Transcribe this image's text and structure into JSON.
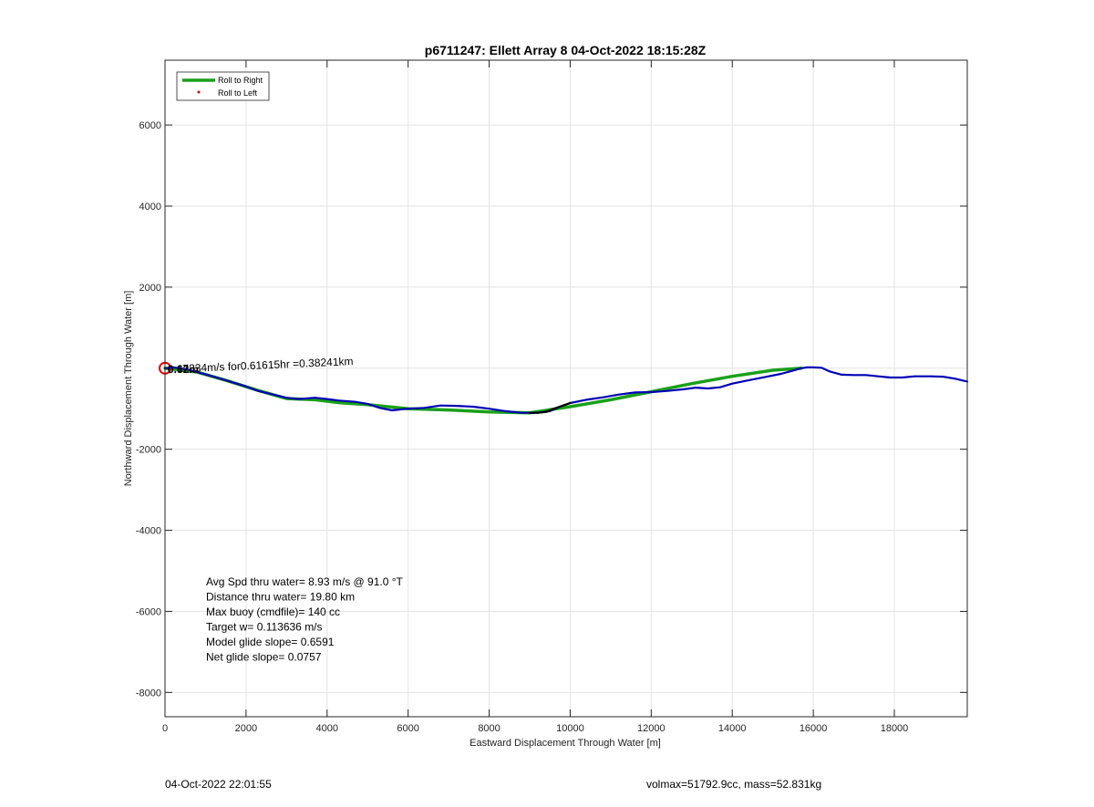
{
  "chart_data": {
    "type": "line",
    "title": "p6711247: Ellett Array 8 04-Oct-2022 18:15:28Z",
    "xlabel": "Eastward Displacement Through Water [m]",
    "ylabel": "Northward Displacement Through Water [m]",
    "xlim": [
      0,
      19800
    ],
    "ylim": [
      -8600,
      7600
    ],
    "xticks": [
      0,
      2000,
      4000,
      6000,
      8000,
      10000,
      12000,
      14000,
      16000,
      18000
    ],
    "yticks": [
      -8000,
      -6000,
      -4000,
      -2000,
      2000,
      4000,
      6000
    ],
    "grid": true,
    "legend": {
      "placement": "top-left",
      "entries": [
        "Roll to Right",
        "Roll to Left"
      ]
    },
    "series": [
      {
        "name": "Roll to Right",
        "color": "#1aa01a",
        "style": "thick-line",
        "x": [
          0,
          800,
          1500,
          2300,
          3000,
          3700,
          4300,
          5000,
          6000,
          7000,
          8000,
          9000,
          10000,
          11000,
          12000,
          13000,
          14000,
          15000,
          15700
        ],
        "y": [
          0,
          -100,
          -300,
          -550,
          -750,
          -780,
          -850,
          -900,
          -1000,
          -1030,
          -1080,
          -1100,
          -950,
          -780,
          -580,
          -380,
          -200,
          -50,
          0
        ]
      },
      {
        "name": "Roll to Left",
        "color": "#e00000",
        "style": "marker",
        "x": [
          0
        ],
        "y": [
          0
        ]
      },
      {
        "color": "#0000b4",
        "style": "line",
        "x": [
          0,
          200,
          500,
          800,
          1100,
          1500,
          1900,
          2300,
          2700,
          3000,
          3300,
          3700,
          4000,
          4300,
          4700,
          5000,
          5300,
          5600,
          6000,
          6400,
          6800,
          7200,
          7600,
          8000,
          8400,
          8800,
          9200,
          9500,
          9700,
          10000,
          10400,
          10800,
          11200,
          11600,
          12000,
          12400,
          12800,
          13100,
          13400,
          13700,
          14000,
          14400,
          14800,
          15200,
          15500,
          15700,
          15850,
          16000,
          16200,
          16400,
          16700,
          17000,
          17300,
          17600,
          17900,
          18200,
          18500,
          18900,
          19200,
          19500,
          19800
        ],
        "y": [
          0,
          20,
          -20,
          -100,
          -180,
          -300,
          -420,
          -560,
          -660,
          -730,
          -760,
          -730,
          -760,
          -800,
          -830,
          -880,
          -980,
          -1040,
          -1000,
          -980,
          -920,
          -930,
          -950,
          -1000,
          -1060,
          -1100,
          -1100,
          -1060,
          -970,
          -860,
          -780,
          -720,
          -650,
          -600,
          -590,
          -560,
          -520,
          -480,
          -500,
          -470,
          -380,
          -300,
          -220,
          -140,
          -60,
          0,
          20,
          20,
          10,
          -80,
          -160,
          -170,
          -170,
          -200,
          -230,
          -230,
          -200,
          -200,
          -210,
          -260,
          -330
        ]
      },
      {
        "color": "#000000",
        "style": "line",
        "x": [
          9000,
          9200,
          9400,
          9600,
          9800,
          10000
        ],
        "y": [
          -1100,
          -1100,
          -1080,
          -1000,
          -930,
          -860
        ]
      }
    ],
    "annotations": {
      "rotated_label": "0.17334m/s for0.61615hr =0.38241km",
      "start_label": "0.62m",
      "stats": [
        "Avg Spd thru water=  8.93 m/s @  91.0 °T",
        "Distance thru water= 19.80 km",
        "Max buoy (cmdfile)= 140 cc",
        "Target w= 0.113636 m/s",
        "Model glide slope= 0.6591",
        "Net glide slope= 0.0757"
      ]
    }
  },
  "footer": {
    "left": "04-Oct-2022 22:01:55",
    "right": "volmax=51792.9cc, mass=52.831kg"
  }
}
